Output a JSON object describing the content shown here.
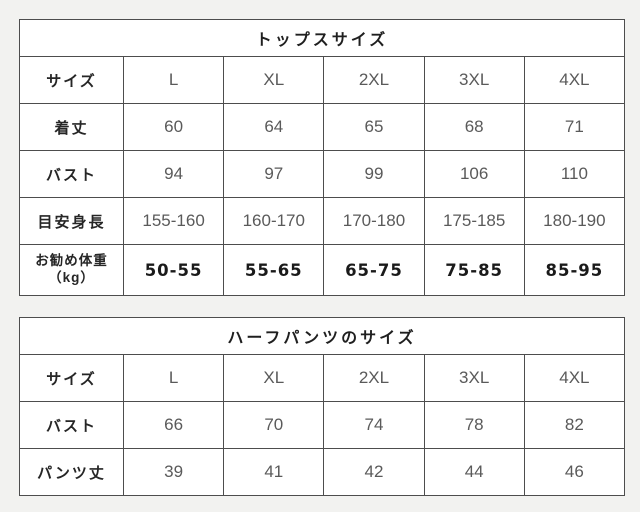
{
  "colors": {
    "page_background": "#f2f2f0",
    "table_background": "#ffffff",
    "border": "#4d4d4d",
    "label_text": "#262626",
    "data_text": "#5a5a5a",
    "emphasis_text": "#1a1a1a"
  },
  "tables": [
    {
      "title": "トップスサイズ",
      "rows": [
        {
          "label": "サイズ",
          "values": [
            "L",
            "XL",
            "2XL",
            "3XL",
            "4XL"
          ]
        },
        {
          "label": "着丈",
          "values": [
            "60",
            "64",
            "65",
            "68",
            "71"
          ]
        },
        {
          "label": "バスト",
          "values": [
            "94",
            "97",
            "99",
            "106",
            "110"
          ]
        },
        {
          "label": "目安身長",
          "values": [
            "155-160",
            "160-170",
            "170-180",
            "175-185",
            "180-190"
          ]
        },
        {
          "label": "お勧め体重",
          "label_sub": "（kg）",
          "values": [
            "50-55",
            "55-65",
            "65-75",
            "75-85",
            "85-95"
          ]
        }
      ]
    },
    {
      "title": "ハーフパンツのサイズ",
      "rows": [
        {
          "label": "サイズ",
          "values": [
            "L",
            "XL",
            "2XL",
            "3XL",
            "4XL"
          ]
        },
        {
          "label": "バスト",
          "values": [
            "66",
            "70",
            "74",
            "78",
            "82"
          ]
        },
        {
          "label": "パンツ丈",
          "values": [
            "39",
            "41",
            "42",
            "44",
            "46"
          ]
        }
      ]
    }
  ]
}
